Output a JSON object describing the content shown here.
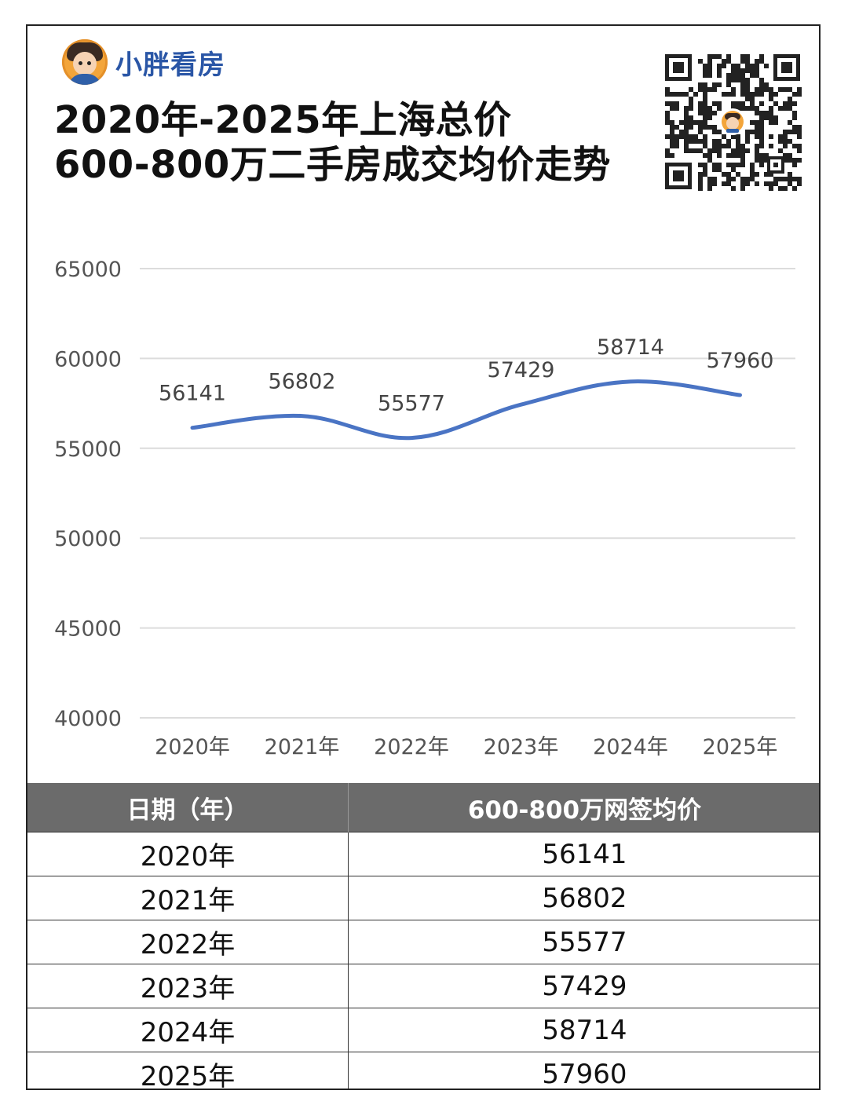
{
  "brand": {
    "name": "小胖看房",
    "avatar_icon": "cartoon-boy-avatar"
  },
  "title": {
    "line1": "2020年-2025年上海总价",
    "line2": "600-800万二手房成交均价走势"
  },
  "qr_icon": "qr-code-icon",
  "colors": {
    "line": "#4a74c4",
    "header_bg": "#6b6b6b",
    "brand": "#2a56a6"
  },
  "chart_data": {
    "type": "line",
    "title": "",
    "xlabel": "",
    "ylabel": "",
    "categories": [
      "2020年",
      "2021年",
      "2022年",
      "2023年",
      "2024年",
      "2025年"
    ],
    "series": [
      {
        "values": [
          56141,
          56802,
          55577,
          57429,
          58714,
          57960
        ]
      }
    ],
    "data_labels": [
      "56141",
      "56802",
      "55577",
      "57429",
      "58714",
      "57960"
    ],
    "y_ticks": [
      "65000",
      "60000",
      "55000",
      "50000",
      "45000",
      "40000"
    ],
    "ylim": [
      40000,
      65000
    ],
    "grid": true,
    "smooth": true,
    "legend": "none"
  },
  "table": {
    "headers": [
      "日期（年）",
      "600-800万网签均价"
    ],
    "rows": [
      [
        "2020年",
        "56141"
      ],
      [
        "2021年",
        "56802"
      ],
      [
        "2022年",
        "55577"
      ],
      [
        "2023年",
        "57429"
      ],
      [
        "2024年",
        "58714"
      ],
      [
        "2025年",
        "57960"
      ]
    ]
  }
}
